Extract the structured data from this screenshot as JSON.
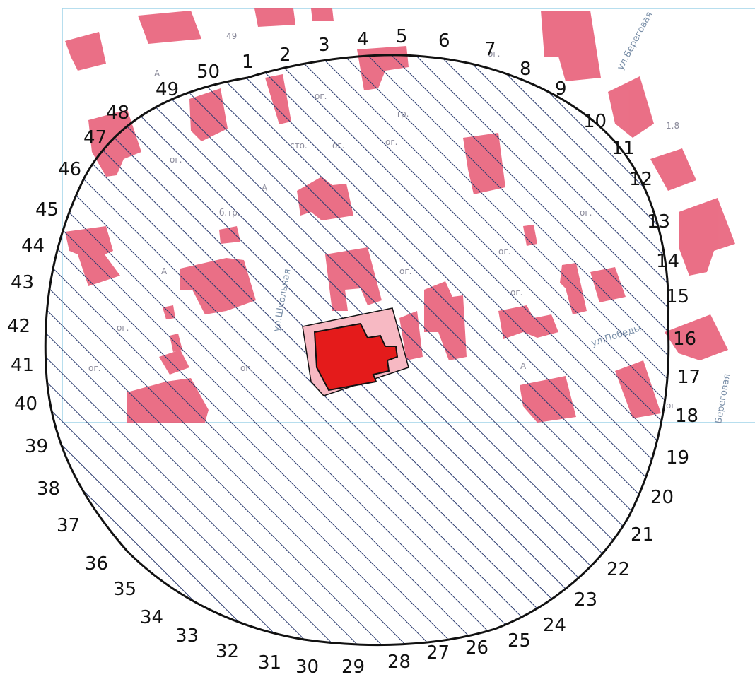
{
  "point_labels": [
    "1",
    "2",
    "3",
    "4",
    "5",
    "6",
    "7",
    "8",
    "9",
    "10",
    "11",
    "12",
    "13",
    "14",
    "15",
    "16",
    "17",
    "18",
    "19",
    "20",
    "21",
    "22",
    "23",
    "24",
    "25",
    "26",
    "27",
    "28",
    "29",
    "30",
    "31",
    "32",
    "33",
    "34",
    "35",
    "36",
    "37",
    "38",
    "39",
    "40",
    "41",
    "42",
    "43",
    "44",
    "45",
    "46",
    "47",
    "48",
    "49",
    "50"
  ],
  "streets": {
    "beregovaya_top": "ул.Береговая",
    "shkolnaya": "ул.Школьная",
    "pobedy": "ул.Победы",
    "beregovaya_right": "Береговая"
  },
  "annotations": [
    {
      "name": "label-49-top",
      "text": "49"
    },
    {
      "name": "label-1-8",
      "text": "1.8"
    },
    {
      "name": "label-og-1",
      "text": "ог."
    },
    {
      "name": "label-og-2",
      "text": "ог."
    },
    {
      "name": "label-og-3",
      "text": "ог."
    },
    {
      "name": "label-og-4",
      "text": "ог."
    },
    {
      "name": "label-og-5",
      "text": "ог."
    },
    {
      "name": "label-og-6",
      "text": "ог."
    },
    {
      "name": "label-og-7",
      "text": "ог."
    },
    {
      "name": "label-og-8",
      "text": "ог."
    },
    {
      "name": "label-og-9",
      "text": "ог."
    },
    {
      "name": "label-og-10",
      "text": "ог."
    },
    {
      "name": "label-og-11",
      "text": "ог."
    },
    {
      "name": "label-og-12",
      "text": "ог."
    },
    {
      "name": "label-og-13",
      "text": "ог."
    },
    {
      "name": "label-sto",
      "text": "сто."
    },
    {
      "name": "label-btr",
      "text": "б.тр."
    },
    {
      "name": "label-tr",
      "text": "тр."
    },
    {
      "name": "label-a-1",
      "text": "А"
    },
    {
      "name": "label-a-2",
      "text": "А"
    },
    {
      "name": "label-a-3",
      "text": "А"
    },
    {
      "name": "label-a-4",
      "text": "А"
    }
  ],
  "colors": {
    "building": "#e8607a",
    "building_light": "#f2a6b4",
    "target_building": "#e41b1b",
    "target_parcel": "#f7b9c3",
    "hatch": "#2a3a6e",
    "boundary": "#111111",
    "grid_line": "#9fd3e8"
  }
}
